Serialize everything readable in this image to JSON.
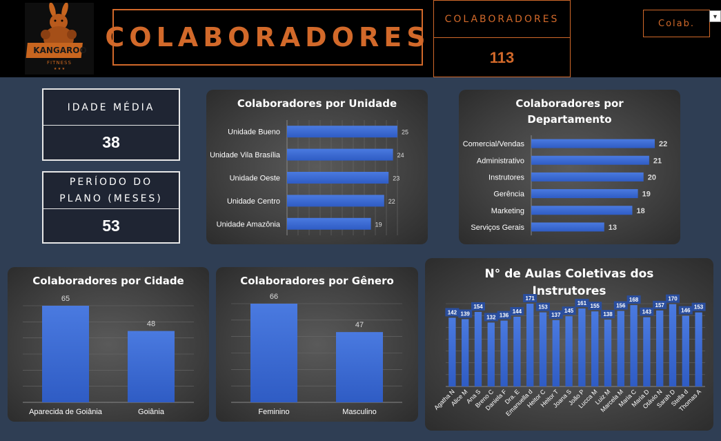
{
  "header": {
    "logo_text": "KANGAROO FITNESS",
    "title": "COLABORADORES",
    "count_label": "COLABORADORES",
    "count_value": "113",
    "filter_label": "Colab."
  },
  "kpis": {
    "idade_label": "IDADE MÉDIA",
    "idade_value": "38",
    "periodo_label": "PERÍODO DO PLANO (MESES)",
    "periodo_value": "53"
  },
  "colors": {
    "accent": "#d2692a",
    "bar": "#3a6ad6",
    "background": "#2f3e54"
  },
  "chart_data": [
    {
      "type": "bar",
      "orientation": "horizontal",
      "title": "Colaboradores por Unidade",
      "categories": [
        "Unidade Bueno",
        "Unidade Vila Brasília",
        "Unidade Oeste",
        "Unidade Centro",
        "Unidade Amazônia"
      ],
      "values": [
        25,
        24,
        23,
        22,
        19
      ],
      "xlim": [
        0,
        25
      ],
      "grid": true
    },
    {
      "type": "bar",
      "orientation": "horizontal",
      "title": "Colaboradores por Departamento",
      "categories": [
        "Comercial/Vendas",
        "Administrativo",
        "Instrutores",
        "Gerência",
        "Marketing",
        "Serviços Gerais"
      ],
      "values": [
        22,
        21,
        20,
        19,
        18,
        13
      ],
      "xlim": [
        0,
        22
      ],
      "grid": false
    },
    {
      "type": "bar",
      "title": "Colaboradores por Cidade",
      "categories": [
        "Aparecida de Goiânia",
        "Goiânia"
      ],
      "values": [
        65,
        48
      ],
      "ylim": [
        0,
        65
      ],
      "grid": true
    },
    {
      "type": "bar",
      "title": "Colaboradores por Gênero",
      "categories": [
        "Feminino",
        "Masculino"
      ],
      "values": [
        66,
        47
      ],
      "ylim": [
        0,
        66
      ],
      "grid": true
    },
    {
      "type": "bar",
      "title": "N° de Aulas Coletivas dos Instrutores",
      "categories": [
        "Agatha N",
        "Alice M",
        "Ana S",
        "Breno C",
        "Daniela F",
        "Dra. E",
        "Emanuella d",
        "Heitor C",
        "Heitor T",
        "Joana S",
        "João P",
        "Lucca M",
        "Luiz M",
        "Marcela M",
        "Maria C",
        "Maria D",
        "Otávio N",
        "Sarah D",
        "Stella d",
        "Thomas A"
      ],
      "values": [
        142,
        139,
        154,
        132,
        136,
        144,
        171,
        153,
        137,
        145,
        161,
        155,
        138,
        156,
        168,
        143,
        157,
        170,
        146,
        153
      ],
      "ylim": [
        0,
        171
      ],
      "grid": true
    }
  ]
}
